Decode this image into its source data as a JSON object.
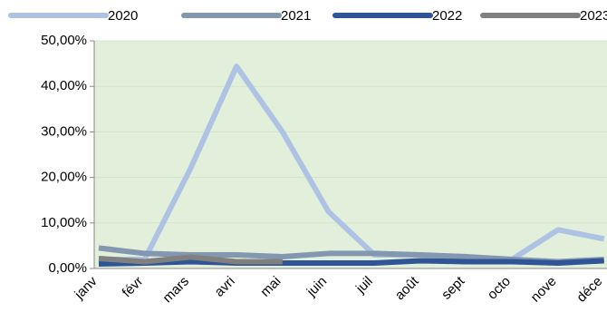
{
  "chart_data": {
    "type": "line",
    "categories": [
      "janv",
      "févr",
      "mars",
      "avri",
      "mai",
      "juin",
      "juil",
      "août",
      "sept",
      "octo",
      "nove",
      "déce"
    ],
    "series": [
      {
        "name": "2020",
        "color": "#aec2e4",
        "values": [
          2,
          2,
          22,
          44.4,
          30,
          12.5,
          3,
          3,
          2.5,
          2,
          8.5,
          6.5
        ]
      },
      {
        "name": "2021",
        "color": "#8497b0",
        "values": [
          4.5,
          3.3,
          3,
          3,
          2.6,
          3.3,
          3.3,
          3,
          2.6,
          2,
          1.5,
          2
        ]
      },
      {
        "name": "2022",
        "color": "#2f5597",
        "values": [
          1,
          1.2,
          1.5,
          1.2,
          1.2,
          1.2,
          1.2,
          1.7,
          1.5,
          1.5,
          1.2,
          1.7
        ]
      },
      {
        "name": "2023",
        "color": "#808080",
        "values": [
          2.2,
          1.5,
          2.5,
          1.5,
          1.5,
          null,
          null,
          null,
          null,
          null,
          null,
          null
        ]
      }
    ],
    "ylim": [
      0,
      50
    ],
    "yticks": [
      {
        "value": 0,
        "label": "0,00%"
      },
      {
        "value": 10,
        "label": "10,00%"
      },
      {
        "value": 20,
        "label": "20,00%"
      },
      {
        "value": 30,
        "label": "30,00%"
      },
      {
        "value": 40,
        "label": "40,00%"
      },
      {
        "value": 50,
        "label": "50,00%"
      }
    ],
    "grid": true,
    "plot_background": "#e2efda"
  }
}
